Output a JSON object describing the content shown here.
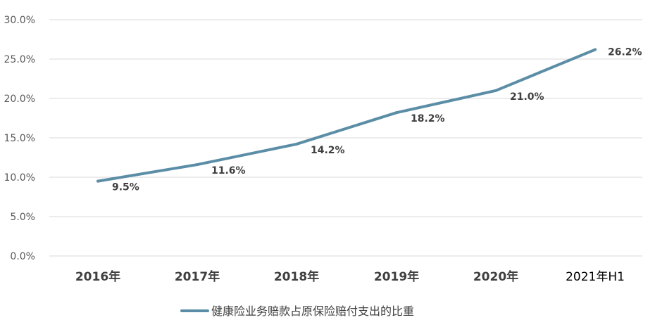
{
  "chart_data": {
    "type": "line",
    "categories": [
      "2016年",
      "2017年",
      "2018年",
      "2019年",
      "2020年",
      "2021年H1"
    ],
    "series": [
      {
        "name": "健康险业务赔款占原保险赔付支出的比重",
        "values": [
          9.5,
          11.6,
          14.2,
          18.2,
          21.0,
          26.2
        ],
        "data_labels": [
          "9.5%",
          "11.6%",
          "14.2%",
          "18.2%",
          "21.0%",
          "26.2%"
        ],
        "color": "#5b8ea6"
      }
    ],
    "yticks": [
      "0.0%",
      "5.0%",
      "10.0%",
      "15.0%",
      "20.0%",
      "25.0%",
      "30.0%"
    ],
    "ylim": [
      0,
      30
    ],
    "grid": true,
    "legend_position": "bottom",
    "title": "",
    "xlabel": "",
    "ylabel": ""
  }
}
